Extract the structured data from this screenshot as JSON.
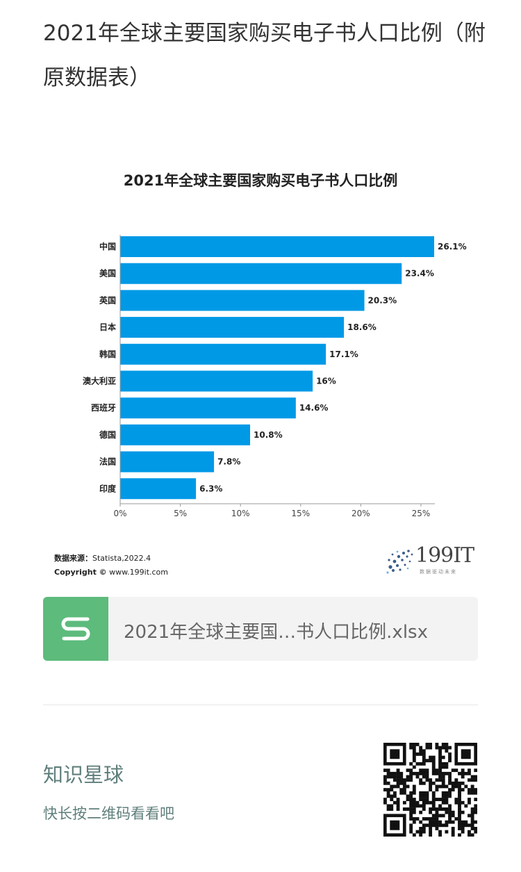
{
  "article": {
    "title": "2021年全球主要国家购买电子书人口比例（附原数据表）"
  },
  "chart_data": {
    "type": "bar",
    "orientation": "horizontal",
    "title": "2021年全球主要国家购买电子书人口比例",
    "categories": [
      "中国",
      "美国",
      "英国",
      "日本",
      "韩国",
      "澳大利亚",
      "西班牙",
      "德国",
      "法国",
      "印度"
    ],
    "values": [
      26.1,
      23.4,
      20.3,
      18.6,
      17.1,
      16,
      14.6,
      10.8,
      7.8,
      6.3
    ],
    "value_labels": [
      "26.1%",
      "23.4%",
      "20.3%",
      "18.6%",
      "17.1%",
      "16%",
      "14.6%",
      "10.8%",
      "7.8%",
      "6.3%"
    ],
    "x_ticks": [
      0,
      5,
      10,
      15,
      20,
      25
    ],
    "x_tick_labels": [
      "0%",
      "5%",
      "10%",
      "15%",
      "20%",
      "25%"
    ],
    "xlim": [
      0,
      26.1
    ],
    "bar_color": "#0099e6",
    "grid": false,
    "xlabel": "",
    "ylabel": ""
  },
  "source": {
    "label": "数据来源：",
    "text": "Statista,2022.4",
    "copyright_label": "Copyright ©",
    "copyright_text": "www.199it.com"
  },
  "logo": {
    "text": "199IT",
    "tagline": "数据驱动未来"
  },
  "attachment": {
    "icon": "spreadsheet-icon",
    "name": "2021年全球主要国…书人口比例.xlsx",
    "icon_color": "#5dbb7c"
  },
  "footer": {
    "title": "知识星球",
    "subtitle": "快长按二维码看看吧"
  }
}
